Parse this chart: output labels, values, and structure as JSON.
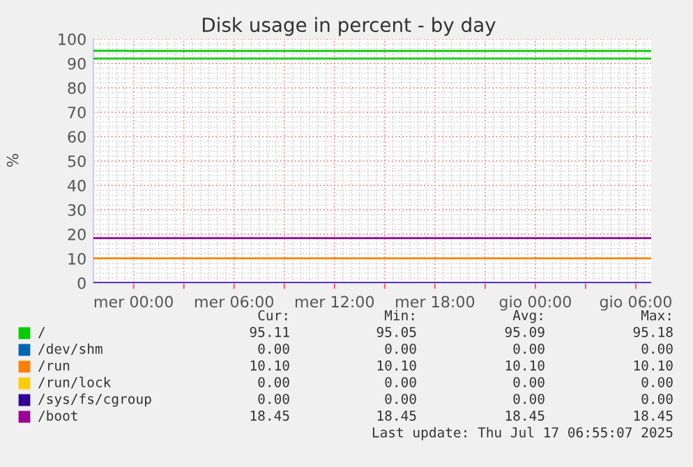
{
  "chart_data": {
    "type": "line",
    "title": "Disk usage in percent - by day",
    "ylabel": "%",
    "xlim": [
      "2025-07-15T21:36",
      "2025-07-17T06:55"
    ],
    "ylim": [
      0,
      100
    ],
    "xticks": [
      {
        "value": "2025-07-16T00:00",
        "label": "mer 00:00"
      },
      {
        "value": "2025-07-16T03:00",
        "label": null
      },
      {
        "value": "2025-07-16T06:00",
        "label": "mer 06:00"
      },
      {
        "value": "2025-07-16T09:00",
        "label": null
      },
      {
        "value": "2025-07-16T12:00",
        "label": "mer 12:00"
      },
      {
        "value": "2025-07-16T15:00",
        "label": null
      },
      {
        "value": "2025-07-16T18:00",
        "label": "mer 18:00"
      },
      {
        "value": "2025-07-16T21:00",
        "label": null
      },
      {
        "value": "2025-07-17T00:00",
        "label": "gio 00:00"
      },
      {
        "value": "2025-07-17T03:00",
        "label": null
      },
      {
        "value": "2025-07-17T06:00",
        "label": "gio 06:00"
      }
    ],
    "yticks": [
      0,
      10,
      20,
      30,
      40,
      50,
      60,
      70,
      80,
      90,
      100
    ],
    "grid": true,
    "legend": "bottom",
    "marker": "none",
    "line_style": "solid",
    "series": [
      {
        "name": "/",
        "color": "#00cc00",
        "type": "step",
        "x": [
          "2025-07-15T21:36",
          "2025-07-15T23:36",
          "2025-07-17T06:55"
        ],
        "values": [
          95.2,
          95.1,
          95.1
        ]
      },
      {
        "name": "/dev/shm",
        "color": "#0066b3"
      },
      {
        "name": "/run",
        "color": "#ff8000",
        "x": [
          "2025-07-15T21:36",
          "2025-07-17T06:55"
        ],
        "values": [
          10.1,
          10.1
        ]
      },
      {
        "name": "/run/lock",
        "color": "#ffcc00"
      },
      {
        "name": "/sys/fs/cgroup",
        "color": "#330099",
        "x": [
          "2025-07-15T21:36",
          "2025-07-17T06:55"
        ],
        "values": [
          0,
          0
        ]
      },
      {
        "name": "/boot",
        "color": "#990099",
        "x": [
          "2025-07-15T21:36",
          "2025-07-17T06:55"
        ],
        "values": [
          18.4,
          18.4
        ]
      }
    ],
    "ref_lines": [
      {
        "axis": "y",
        "value": 92,
        "label": null,
        "color": "#22cc22"
      }
    ],
    "annotations": [
      "Cur:",
      "Min:",
      "Avg:",
      "Max:",
      "95.11",
      "95.05",
      "95.09",
      "95.18",
      "0.00",
      "0.00",
      "0.00",
      "0.00",
      "10.10",
      "10.10",
      "10.10",
      "10.10",
      "0.00",
      "0.00",
      "0.00",
      "0.00",
      "0.00",
      "0.00",
      "0.00",
      "0.00",
      "18.45",
      "18.45",
      "18.45",
      "18.45",
      "Last update: Thu Jul 17 06:55:07 2025"
    ]
  }
}
